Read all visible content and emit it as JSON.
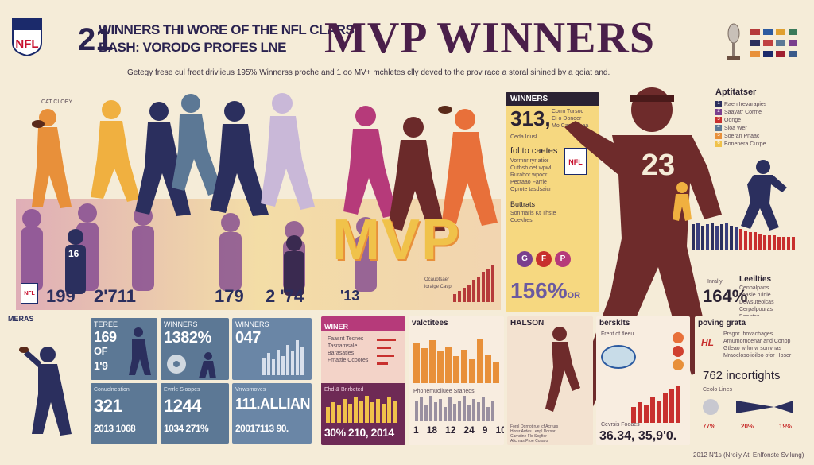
{
  "header": {
    "logo_text": "NFL",
    "subtitle_line1": "WINNERS THI WORE OF THE NFL CLARS",
    "subtitle_line2": "BASH: VORODG PROFES LNE",
    "subtitle_prefix": "21",
    "title": "MVP WINNERS",
    "tagline": "Getegy frese cul freet driviieus 195% Winnerss proche and 1 oo MV+ mchletes clly deved to the prov race a storal sinined by a goiat and."
  },
  "hero": {
    "cap_label": "CAT CLOEY",
    "center_word": "MVP",
    "jersey_number": "23",
    "small_jersey": "16",
    "stats_row": [
      "199",
      "2'711",
      "179",
      "2 '74",
      "'13"
    ],
    "nfl_mini": "NFL",
    "chart_caption": "Ocauotsaer\nloraige Cavp"
  },
  "winners_card": {
    "header": "WINNERS",
    "value": "313,",
    "side_lines": [
      "Corm Tursoc",
      "Ci o Donoer",
      "Mo Cao Fabea"
    ],
    "foot": "Ceda Idusl",
    "label_a": "fol to caetes",
    "lines_a": [
      "Vormnr ryr atior",
      "Cuthsh oet wpwl",
      "Rurahor wpoor",
      "Pectaao Farrie",
      "Oprote tasdsaicr"
    ],
    "label_b": "Buttrats",
    "lines_b": [
      "Sonmaris Kt Thste",
      "Coekhes"
    ],
    "percent": "156%",
    "percent_suffix": "OR"
  },
  "right_legend": {
    "title": "Aptitatser",
    "items": [
      {
        "num": "1",
        "label": "Raeh Irevarapies"
      },
      {
        "num": "2",
        "label": "Saayatr Corme"
      },
      {
        "num": "3",
        "label": "Oonge"
      },
      {
        "num": "4",
        "label": "Sloa Wer"
      },
      {
        "num": "5",
        "label": "Soeran Pnaac"
      },
      {
        "num": "6",
        "label": "Bonenera Cuxpe"
      }
    ],
    "stat_label": "Inrally",
    "stat_value": "164%",
    "side_title": "Leeilties",
    "side_lines": [
      "Cenpalpans",
      "Leasle ruinle",
      "Dewsuteoicas",
      "Cerpalpouras",
      "Beentse"
    ]
  },
  "bottom_panels": [
    {
      "title": "MERAS",
      "value": "",
      "caption": ""
    },
    {
      "title": "TEREE",
      "value": "169",
      "sub": "OF",
      "sub2": "1'9",
      "bottom_value": "321",
      "bottom_caption": "Conuclneation",
      "foot": "2013 1068"
    },
    {
      "title": "WINNERS",
      "value": "1382%",
      "bottom_caption": "Evrrle Sloopes",
      "bottom_value": "1244",
      "foot": "1034 271%"
    },
    {
      "title": "WINNERS",
      "value": "047",
      "bottom_caption": "Vrrwsmoves",
      "bottom_value": "111.ALLIAN",
      "foot": "20017113 90."
    },
    {
      "title": "WINER",
      "lines": [
        "Faasnt Tecnes",
        "Tasnamsale",
        "Barasatles",
        "Fmattie Ccoores"
      ],
      "bottom_caption": "Ehd & Bnrbeted",
      "foot": "30% 210, 2014"
    },
    {
      "title": "valctitees",
      "bottom_caption": "Phonemuoiiuee Sraheds",
      "axis": [
        "1",
        "18",
        "12",
        "24",
        "9",
        "10"
      ]
    },
    {
      "title": "HALSON",
      "notes": [
        "Forpl Ogrnot rue lcf Acrrurs",
        "Horer Ardes Lenpl Dorsar",
        "Carndine Flo Sogfior",
        "Alicrnas Proe Cosaro"
      ]
    },
    {
      "title": "bersklts",
      "sub": "Frent of fleeu",
      "foot": "36.34, 35,9'0.",
      "caption": "Cevrsis Fooaes"
    },
    {
      "title": "poving grata",
      "lines": [
        "Prsgor Ihovachages",
        "Arnumomdenar and Conpp",
        "Gtleao wrloriw sorrvnas",
        "Mraoelosolioiloo ofor Hoser"
      ],
      "stat": "762 incortights",
      "caption": "Ceolo Lines",
      "pct": [
        "77%",
        "20%",
        "19%"
      ]
    }
  ],
  "footer": {
    "credit": "2012 N'1s (Nroily At. Enlfonste Svilung)"
  },
  "colors": {
    "navy": "#2b2f5e",
    "maroon": "#6b2a2a",
    "orange": "#e8903a",
    "yellow": "#f0c24a",
    "magenta": "#b63a7a",
    "purple": "#7a3f8e",
    "slate": "#5c7895",
    "cream": "#f5ecd8"
  }
}
